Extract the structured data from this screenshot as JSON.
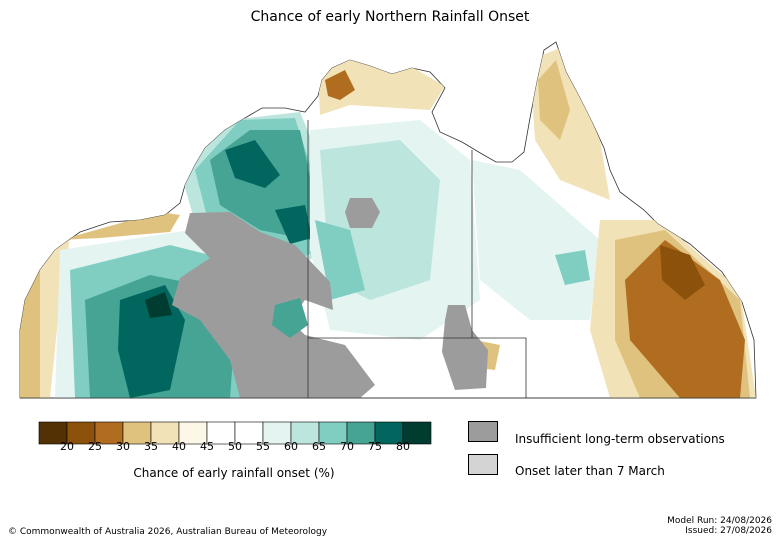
{
  "map": {
    "title": "Chance of early Northern Rainfall Onset",
    "colorbar": {
      "title": "Chance of early rainfall onset (%)",
      "tick_labels": [
        "20",
        "25",
        "30",
        "35",
        "40",
        "45",
        "50",
        "55",
        "60",
        "65",
        "70",
        "75",
        "80"
      ],
      "colors": [
        "#543005",
        "#8c510a",
        "#b06d1f",
        "#dfc27d",
        "#f2e2b7",
        "#fdf7e8",
        "#ffffff",
        "#ffffff",
        "#e3f4f1",
        "#bce6dd",
        "#80cdc1",
        "#45a494",
        "#01665e",
        "#003c30"
      ]
    },
    "legend": [
      {
        "label": "Insufficient long-term observations",
        "color": "#9c9c9c"
      },
      {
        "label": "Onset later than 7 March",
        "color": "#d4d4d4"
      }
    ]
  },
  "footer": {
    "copyright": "© Commonwealth of Australia 2026, Australian Bureau of Meteorology",
    "model_run": "Model Run: 24/08/2026",
    "issued": "Issued: 27/08/2026"
  }
}
